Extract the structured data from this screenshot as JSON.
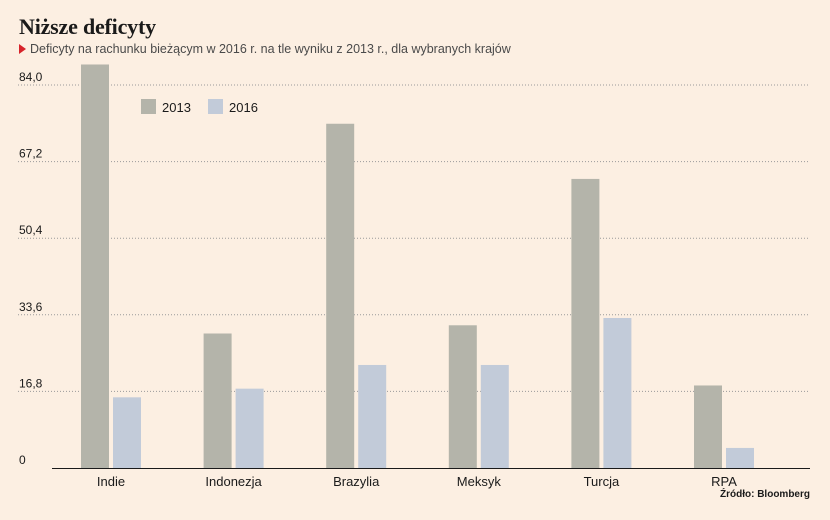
{
  "header": {
    "title": "Niższe deficyty",
    "subtitle": "Deficyty na rachunku bieżącym w 2016 r. na tle wyniku z 2013 r., dla wybranych krajów"
  },
  "source": "Źródło: Bloomberg",
  "colors": {
    "background": "#fcefe2",
    "series_2013": "#b4b4aa",
    "series_2016": "#c2cbd9",
    "accent_marker": "#d7232a",
    "grid": "#9a9a9a",
    "axis": "#1a1a1a"
  },
  "chart_data": {
    "type": "bar",
    "categories": [
      "Indie",
      "Indonezja",
      "Brazylia",
      "Meksyk",
      "Turcja",
      "RPA"
    ],
    "series": [
      {
        "name": "2013",
        "values": [
          88.5,
          29.5,
          75.5,
          31.3,
          63.4,
          18.1
        ]
      },
      {
        "name": "2016",
        "values": [
          15.5,
          17.4,
          22.6,
          22.6,
          32.9,
          4.4
        ]
      }
    ],
    "yticks": [
      0,
      16.8,
      33.6,
      50.4,
      67.2,
      84.0
    ],
    "ytick_labels": [
      "0",
      "16,8",
      "33,6",
      "50,4",
      "67,2",
      "84,0"
    ],
    "ylim": [
      0,
      90
    ],
    "grid": true,
    "legend": "top-left"
  }
}
